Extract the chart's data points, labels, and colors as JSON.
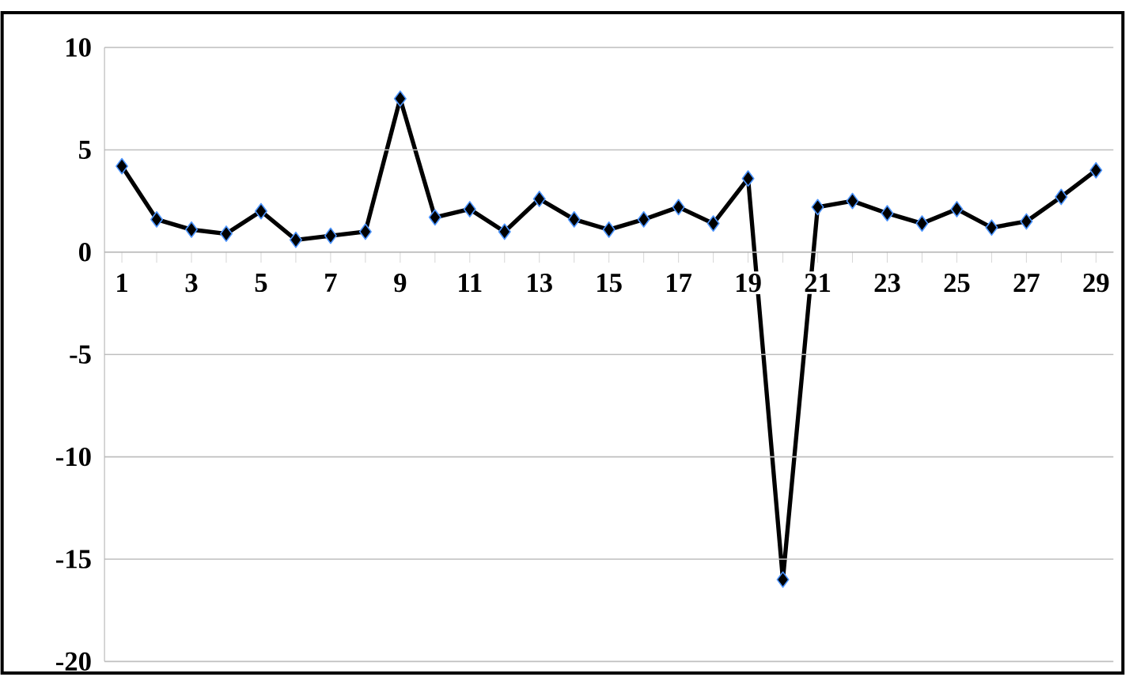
{
  "chart_data": {
    "type": "line",
    "categories": [
      "1",
      null,
      "3",
      null,
      "5",
      null,
      "7",
      null,
      "9",
      null,
      "11",
      null,
      "13",
      null,
      "15",
      null,
      "17",
      null,
      "19",
      null,
      "21",
      null,
      "23",
      null,
      "25",
      null,
      "27",
      null,
      "29"
    ],
    "series": [
      {
        "color": "#000000",
        "values": [
          4.2,
          1.6,
          1.1,
          0.9,
          2.0,
          0.6,
          0.8,
          1.0,
          7.5,
          1.7,
          2.1,
          1.0,
          2.6,
          1.6,
          1.1,
          1.6,
          2.2,
          1.4,
          3.6,
          -16,
          2.2,
          2.5,
          1.9,
          1.4,
          2.1,
          1.2,
          1.5,
          2.7,
          4.0
        ]
      }
    ],
    "ylim": [
      -20,
      10
    ],
    "yticks": [
      -20,
      -15,
      -10,
      -5,
      0,
      5,
      10
    ],
    "grid": "y",
    "marker": "diamond",
    "line_style": "solid"
  }
}
